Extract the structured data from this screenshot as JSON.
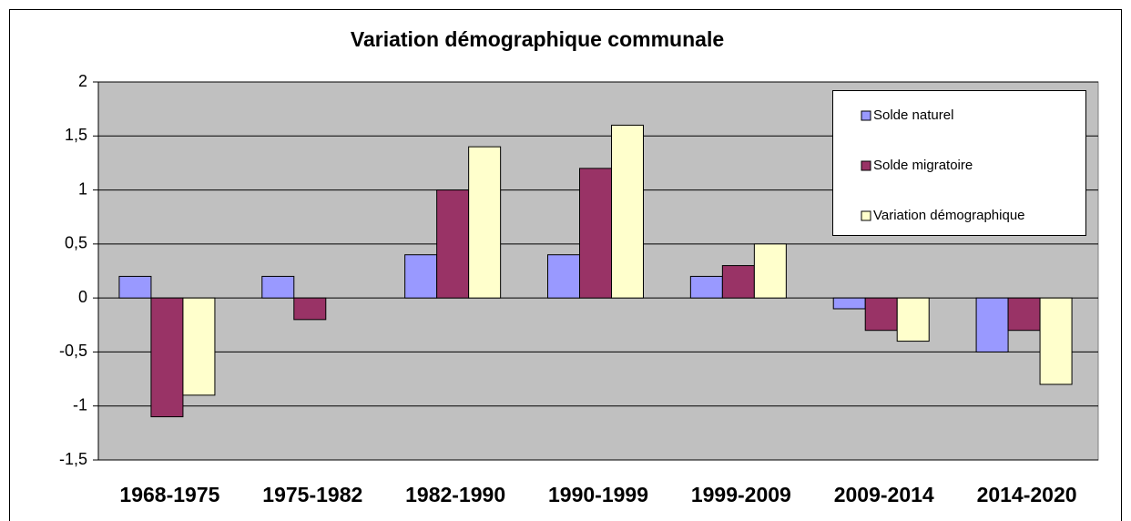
{
  "chart_data": {
    "type": "bar",
    "title": "Variation démographique communale",
    "categories": [
      "1968-1975",
      "1975-1982",
      "1982-1990",
      "1990-1999",
      "1999-2009",
      "2009-2014",
      "2014-2020"
    ],
    "series": [
      {
        "name": "Solde naturel",
        "color": "#9999ff",
        "values": [
          0.2,
          0.2,
          0.4,
          0.4,
          0.2,
          -0.1,
          -0.5
        ]
      },
      {
        "name": "Solde migratoire",
        "color": "#993366",
        "values": [
          -1.1,
          -0.2,
          1.0,
          1.2,
          0.3,
          -0.3,
          -0.3
        ]
      },
      {
        "name": "Variation démographique",
        "color": "#ffffcc",
        "values": [
          -0.9,
          0,
          1.4,
          1.6,
          0.5,
          -0.4,
          -0.8
        ]
      }
    ],
    "ylim": [
      -1.5,
      2
    ],
    "yticks": [
      {
        "value": -1.5,
        "label": "-1,5"
      },
      -1,
      {
        "value": -0.5,
        "label": "-0,5"
      },
      0,
      {
        "value": 0.5,
        "label": "0,5"
      },
      1,
      {
        "value": 1.5,
        "label": "1,5"
      },
      2
    ],
    "grid": true,
    "legend": "upper right"
  }
}
